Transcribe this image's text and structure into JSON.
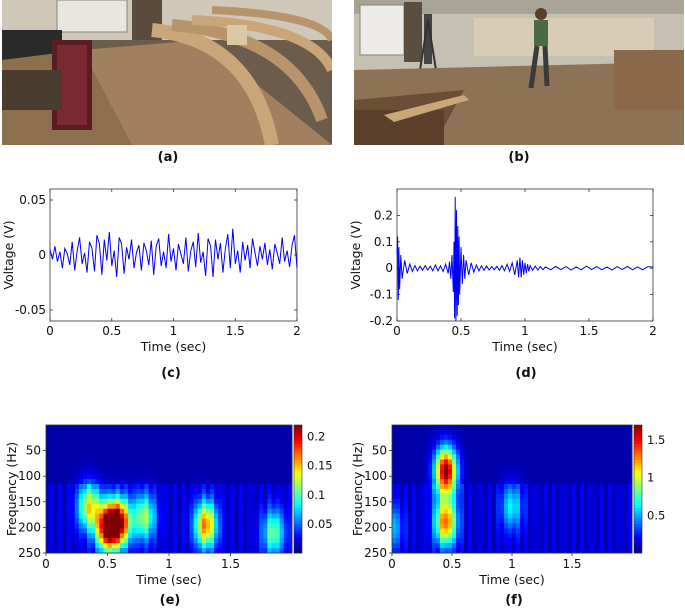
{
  "panel_labels": {
    "a": "(a)",
    "b": "(b)",
    "c": "(c)",
    "d": "(d)",
    "e": "(e)",
    "f": "(f)"
  },
  "chart_data": [
    {
      "id": "c",
      "type": "line",
      "xlabel": "Time (sec)",
      "ylabel": "Voltage (V)",
      "xlim": [
        0,
        2
      ],
      "ylim": [
        -0.06,
        0.06
      ],
      "xticks": [
        "0",
        "0.5",
        "1",
        "1.5",
        "2"
      ],
      "yticks": [
        "0.05",
        "0",
        "-0.05"
      ],
      "series": [
        {
          "color": "#0000ff",
          "x": [
            0,
            0.02,
            0.04,
            0.06,
            0.08,
            0.1,
            0.12,
            0.14,
            0.16,
            0.18,
            0.2,
            0.22,
            0.24,
            0.26,
            0.28,
            0.3,
            0.32,
            0.34,
            0.36,
            0.38,
            0.4,
            0.42,
            0.44,
            0.46,
            0.48,
            0.5,
            0.52,
            0.54,
            0.56,
            0.58,
            0.6,
            0.62,
            0.64,
            0.66,
            0.68,
            0.7,
            0.72,
            0.74,
            0.76,
            0.78,
            0.8,
            0.82,
            0.84,
            0.86,
            0.88,
            0.9,
            0.92,
            0.94,
            0.96,
            0.98,
            1.0,
            1.02,
            1.04,
            1.06,
            1.08,
            1.1,
            1.12,
            1.14,
            1.16,
            1.18,
            1.2,
            1.22,
            1.24,
            1.26,
            1.28,
            1.3,
            1.32,
            1.34,
            1.36,
            1.38,
            1.4,
            1.42,
            1.44,
            1.46,
            1.48,
            1.5,
            1.52,
            1.54,
            1.56,
            1.58,
            1.6,
            1.62,
            1.64,
            1.66,
            1.68,
            1.7,
            1.72,
            1.74,
            1.76,
            1.78,
            1.8,
            1.82,
            1.84,
            1.86,
            1.88,
            1.9,
            1.92,
            1.94,
            1.96,
            1.98,
            2.0
          ],
          "y": [
            0.005,
            -0.004,
            0.008,
            -0.006,
            0.003,
            -0.012,
            0.006,
            0.001,
            -0.009,
            0.012,
            -0.014,
            0.004,
            0.016,
            -0.008,
            0.002,
            -0.016,
            0.012,
            0.006,
            -0.015,
            0.018,
            0.01,
            -0.018,
            0.014,
            -0.005,
            0.021,
            -0.01,
            0.004,
            -0.02,
            0.016,
            0.01,
            -0.017,
            0.007,
            -0.004,
            0.014,
            -0.012,
            0.002,
            0.009,
            -0.014,
            0.011,
            0.004,
            -0.009,
            0.013,
            -0.018,
            0.008,
            0.015,
            -0.01,
            0.003,
            -0.012,
            0.019,
            -0.006,
            0.006,
            -0.014,
            0.01,
            0.001,
            -0.008,
            0.016,
            -0.015,
            0.004,
            0.012,
            -0.011,
            0.02,
            -0.007,
            0.003,
            -0.019,
            0.015,
            0.008,
            -0.02,
            0.014,
            -0.004,
            0.011,
            -0.016,
            0.006,
            0.019,
            -0.012,
            0.024,
            -0.008,
            0.004,
            -0.016,
            0.012,
            -0.005,
            0.009,
            -0.012,
            0.015,
            0.002,
            -0.01,
            0.008,
            -0.004,
            0.011,
            -0.009,
            0.005,
            -0.013,
            0.01,
            0.002,
            -0.008,
            0.016,
            -0.006,
            0.004,
            -0.011,
            0.009,
            0.018,
            -0.012
          ]
        }
      ]
    },
    {
      "id": "d",
      "type": "line",
      "xlabel": "Time (sec)",
      "ylabel": "Voltage (V)",
      "xlim": [
        0,
        2
      ],
      "ylim": [
        -0.2,
        0.3
      ],
      "xticks": [
        "0",
        "0.5",
        "1",
        "1.5",
        "2"
      ],
      "yticks": [
        "0.2",
        "0.1",
        "0",
        "-0.1",
        "-0.2"
      ],
      "series": [
        {
          "color": "#0000ff",
          "x": [
            0,
            0.005,
            0.01,
            0.015,
            0.02,
            0.03,
            0.04,
            0.06,
            0.08,
            0.1,
            0.12,
            0.14,
            0.16,
            0.18,
            0.2,
            0.22,
            0.24,
            0.26,
            0.28,
            0.3,
            0.32,
            0.34,
            0.36,
            0.38,
            0.4,
            0.41,
            0.42,
            0.43,
            0.44,
            0.445,
            0.45,
            0.455,
            0.46,
            0.465,
            0.47,
            0.475,
            0.48,
            0.485,
            0.49,
            0.5,
            0.51,
            0.52,
            0.53,
            0.54,
            0.56,
            0.58,
            0.6,
            0.62,
            0.64,
            0.66,
            0.68,
            0.7,
            0.72,
            0.74,
            0.76,
            0.78,
            0.8,
            0.82,
            0.84,
            0.86,
            0.88,
            0.9,
            0.92,
            0.94,
            0.95,
            0.96,
            0.97,
            0.98,
            0.99,
            1.0,
            1.01,
            1.02,
            1.03,
            1.04,
            1.06,
            1.08,
            1.1,
            1.12,
            1.14,
            1.16,
            1.2,
            1.24,
            1.28,
            1.32,
            1.36,
            1.4,
            1.44,
            1.48,
            1.52,
            1.56,
            1.6,
            1.64,
            1.68,
            1.72,
            1.76,
            1.8,
            1.84,
            1.88,
            1.92,
            1.96,
            2.0
          ],
          "y": [
            0.05,
            0.12,
            -0.12,
            0.08,
            -0.08,
            0.05,
            -0.04,
            0.03,
            -0.02,
            0.015,
            -0.012,
            0.01,
            -0.01,
            0.008,
            -0.008,
            0.01,
            -0.007,
            0.008,
            -0.01,
            0.012,
            -0.01,
            0.009,
            -0.012,
            0.015,
            -0.02,
            0.025,
            -0.04,
            0.05,
            -0.09,
            0.1,
            -0.19,
            0.27,
            -0.2,
            0.22,
            -0.18,
            0.16,
            -0.14,
            0.12,
            -0.1,
            0.08,
            -0.06,
            0.05,
            -0.04,
            0.03,
            -0.025,
            0.02,
            -0.015,
            0.012,
            -0.01,
            0.009,
            -0.008,
            0.008,
            -0.007,
            0.006,
            -0.006,
            0.007,
            -0.008,
            0.01,
            -0.01,
            0.015,
            -0.012,
            0.02,
            -0.025,
            0.03,
            -0.035,
            0.04,
            -0.035,
            0.03,
            -0.025,
            0.02,
            -0.018,
            0.015,
            -0.012,
            0.01,
            -0.008,
            0.008,
            -0.007,
            0.006,
            -0.006,
            0.005,
            -0.006,
            0.007,
            -0.005,
            0.006,
            -0.007,
            0.005,
            -0.006,
            0.008,
            -0.005,
            0.006,
            -0.006,
            0.005,
            -0.007,
            0.006,
            -0.005,
            0.007,
            -0.006,
            0.005,
            -0.006,
            0.006,
            0.004
          ]
        }
      ]
    },
    {
      "id": "e",
      "type": "heatmap",
      "xlabel": "Time (sec)",
      "ylabel": "Frequency (Hz)",
      "xlim": [
        0,
        2
      ],
      "ylim": [
        0,
        250
      ],
      "xticks": [
        "0",
        "0.5",
        "1",
        "1.5"
      ],
      "yticks": [
        "50",
        "100",
        "150",
        "200",
        "250"
      ],
      "colorbar": {
        "min": 0,
        "max": 0.22,
        "ticks": [
          "0.2",
          "0.15",
          "0.1",
          "0.05"
        ]
      },
      "hotspots": [
        {
          "t": 0.35,
          "f": 160,
          "value": 0.12
        },
        {
          "t": 0.5,
          "f": 200,
          "value": 0.21
        },
        {
          "t": 0.6,
          "f": 190,
          "value": 0.18
        },
        {
          "t": 0.8,
          "f": 180,
          "value": 0.1
        },
        {
          "t": 1.3,
          "f": 195,
          "value": 0.15
        },
        {
          "t": 1.85,
          "f": 210,
          "value": 0.09
        }
      ]
    },
    {
      "id": "f",
      "type": "heatmap",
      "xlabel": "Time (sec)",
      "ylabel": "Frequency (Hz)",
      "xlim": [
        0,
        2
      ],
      "ylim": [
        0,
        250
      ],
      "xticks": [
        "0",
        "0.5",
        "1",
        "1.5"
      ],
      "yticks": [
        "50",
        "100",
        "150",
        "200",
        "250"
      ],
      "colorbar": {
        "min": 0,
        "max": 1.7,
        "ticks": [
          "1.5",
          "1",
          "0.5"
        ]
      },
      "hotspots": [
        {
          "t": 0.45,
          "f": 90,
          "value": 1.65
        },
        {
          "t": 0.45,
          "f": 190,
          "value": 1.2
        },
        {
          "t": 1.0,
          "f": 160,
          "value": 0.5
        },
        {
          "t": 0.0,
          "f": 200,
          "value": 0.4
        }
      ]
    }
  ]
}
